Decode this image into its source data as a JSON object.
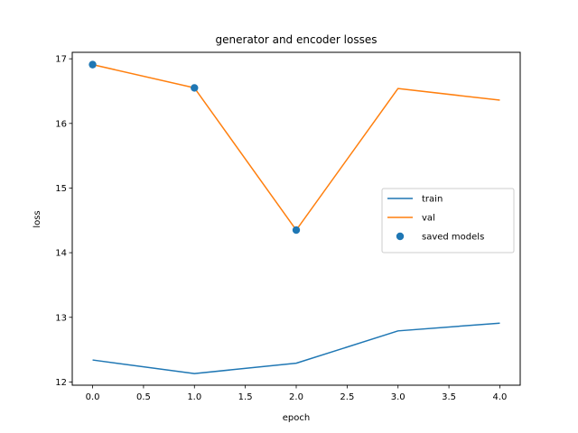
{
  "chart_data": {
    "type": "line",
    "title": "generator and encoder losses",
    "xlabel": "epoch",
    "ylabel": "loss",
    "xlim": [
      -0.2,
      4.2
    ],
    "ylim": [
      11.95,
      17.1
    ],
    "x": [
      0,
      1,
      2,
      3,
      4
    ],
    "xticks": [
      0.0,
      0.5,
      1.0,
      1.5,
      2.0,
      2.5,
      3.0,
      3.5,
      4.0
    ],
    "xtick_labels": [
      "0.0",
      "0.5",
      "1.0",
      "1.5",
      "2.0",
      "2.5",
      "3.0",
      "3.5",
      "4.0"
    ],
    "yticks": [
      12,
      13,
      14,
      15,
      16,
      17
    ],
    "ytick_labels": [
      "12",
      "13",
      "14",
      "15",
      "16",
      "17"
    ],
    "series": [
      {
        "name": "train",
        "kind": "line",
        "color": "#1f77b4",
        "values": [
          12.34,
          12.13,
          12.29,
          12.79,
          12.91
        ]
      },
      {
        "name": "val",
        "kind": "line",
        "color": "#ff7f0e",
        "values": [
          16.91,
          16.55,
          14.35,
          16.54,
          16.36
        ]
      },
      {
        "name": "saved models",
        "kind": "scatter",
        "color": "#1f77b4",
        "x": [
          0,
          1,
          2
        ],
        "values": [
          16.91,
          16.55,
          14.35
        ]
      }
    ],
    "legend": {
      "placement": "center-right"
    },
    "grid": false
  }
}
